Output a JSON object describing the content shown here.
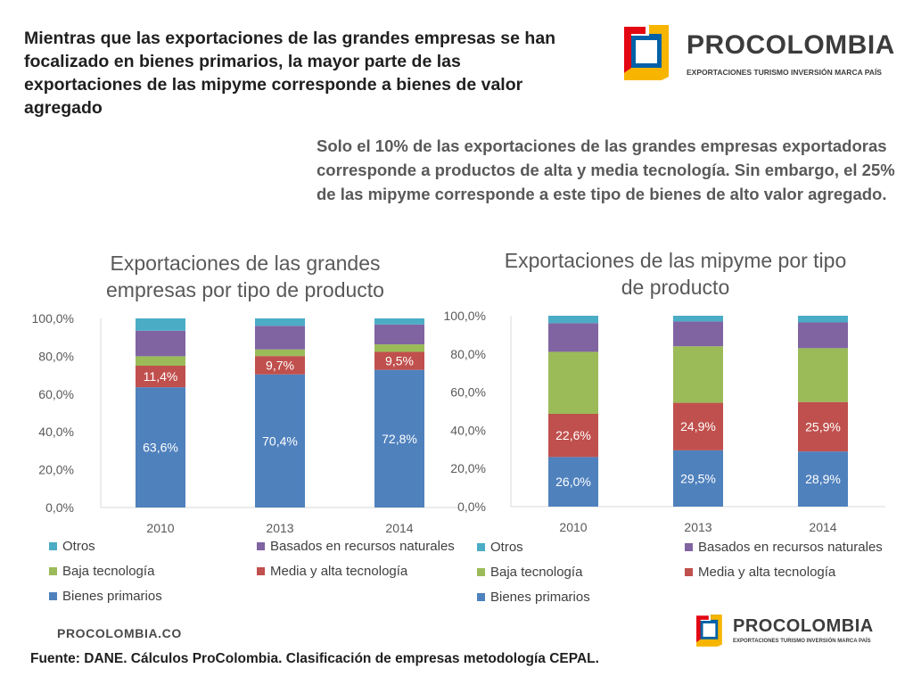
{
  "headline": "Mientras que las exportaciones de las grandes empresas se han focalizado en bienes primarios,  la mayor parte de las exportaciones de las mipyme corresponde a bienes de valor agregado",
  "subtext": "Solo el 10% de las exportaciones de las grandes empresas exportadoras corresponde a productos de alta y media tecnología. Sin embargo, el 25% de las mipyme corresponde a este tipo de bienes de alto valor agregado.",
  "logo": {
    "name": "PROCOLOMBIA",
    "tagline": "EXPORTACIONES TURISMO INVERSIÓN MARCA PAÍS"
  },
  "footer": {
    "site": "PROCOLOMBIA.CO",
    "source": "Fuente: DANE. Cálculos ProColombia. Clasificación de empresas metodología CEPAL."
  },
  "colors": {
    "bienes_primarios": "#4f81bd",
    "media_alta": "#c0504d",
    "baja": "#9bbb59",
    "recursos_naturales": "#8064a2",
    "otros": "#4bacc6"
  },
  "chart_data": [
    {
      "type": "bar",
      "stacked": true,
      "title": "Exportaciones de las grandes empresas por tipo de producto",
      "categories": [
        "2010",
        "2013",
        "2014"
      ],
      "ylim": [
        0,
        100
      ],
      "yticks": [
        "0,0%",
        "20,0%",
        "40,0%",
        "60,0%",
        "80,0%",
        "100,0%"
      ],
      "series": [
        {
          "name": "Bienes primarios",
          "color": "#4f81bd",
          "values": [
            63.6,
            70.4,
            72.8
          ],
          "labels": [
            "63,6%",
            "70,4%",
            "72,8%"
          ]
        },
        {
          "name": "Media y alta tecnología",
          "color": "#c0504d",
          "values": [
            11.4,
            9.7,
            9.5
          ],
          "labels": [
            "11,4%",
            "9,7%",
            "9,5%"
          ]
        },
        {
          "name": "Baja tecnología",
          "color": "#9bbb59",
          "values": [
            5.0,
            3.5,
            4.0
          ],
          "labels": [
            "",
            "",
            ""
          ]
        },
        {
          "name": "Basados en recursos naturales",
          "color": "#8064a2",
          "values": [
            13.5,
            12.5,
            10.5
          ],
          "labels": [
            "",
            "",
            ""
          ]
        },
        {
          "name": "Otros",
          "color": "#4bacc6",
          "values": [
            6.5,
            3.9,
            3.2
          ],
          "labels": [
            "",
            "",
            ""
          ]
        }
      ],
      "legend": [
        {
          "name": "Otros",
          "color": "#4bacc6"
        },
        {
          "name": "Basados en recursos naturales",
          "color": "#8064a2"
        },
        {
          "name": "Baja tecnología",
          "color": "#9bbb59"
        },
        {
          "name": "Media y alta tecnología",
          "color": "#c0504d"
        },
        {
          "name": "Bienes primarios",
          "color": "#4f81bd"
        }
      ]
    },
    {
      "type": "bar",
      "stacked": true,
      "title": "Exportaciones de las mipyme por tipo de producto",
      "categories": [
        "2010",
        "2013",
        "2014"
      ],
      "ylim": [
        0,
        100
      ],
      "yticks": [
        "0,0%",
        "20,0%",
        "40,0%",
        "60,0%",
        "80,0%",
        "100,0%"
      ],
      "series": [
        {
          "name": "Bienes primarios",
          "color": "#4f81bd",
          "values": [
            26.0,
            29.5,
            28.9
          ],
          "labels": [
            "26,0%",
            "29,5%",
            "28,9%"
          ]
        },
        {
          "name": "Media y alta tecnología",
          "color": "#c0504d",
          "values": [
            22.6,
            24.9,
            25.9
          ],
          "labels": [
            "22,6%",
            "24,9%",
            "25,9%"
          ]
        },
        {
          "name": "Baja tecnología",
          "color": "#9bbb59",
          "values": [
            32.5,
            29.6,
            28.2
          ],
          "labels": [
            "",
            "",
            ""
          ]
        },
        {
          "name": "Basados en recursos naturales",
          "color": "#8064a2",
          "values": [
            15.0,
            13.0,
            13.5
          ],
          "labels": [
            "",
            "",
            ""
          ]
        },
        {
          "name": "Otros",
          "color": "#4bacc6",
          "values": [
            3.9,
            3.0,
            3.5
          ],
          "labels": [
            "",
            "",
            ""
          ]
        }
      ],
      "legend": [
        {
          "name": "Otros",
          "color": "#4bacc6"
        },
        {
          "name": "Basados en recursos naturales",
          "color": "#8064a2"
        },
        {
          "name": "Baja tecnología",
          "color": "#9bbb59"
        },
        {
          "name": "Media y alta tecnología",
          "color": "#c0504d"
        },
        {
          "name": "Bienes primarios",
          "color": "#4f81bd"
        }
      ]
    }
  ]
}
